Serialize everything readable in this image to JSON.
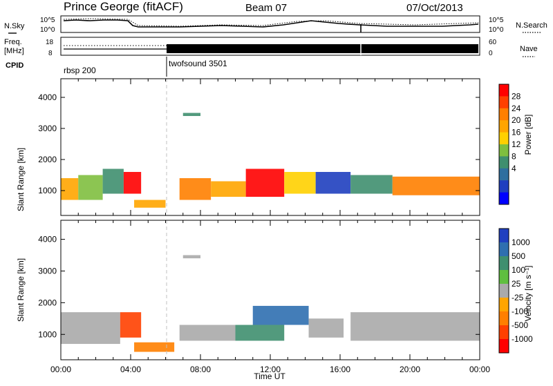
{
  "header": {
    "station": "Prince George (fitACF)",
    "beam": "Beam 07",
    "date": "07/Oct/2013"
  },
  "status_panel": {
    "nsky_label": "N.Sky",
    "nsearch_label": "N.Search",
    "freq_label_1": "Freq.",
    "freq_label_2": "[MHz]",
    "nave_label": "Nave",
    "cpid_label": "CPID",
    "noise_ticks": [
      "10^5",
      "10^0"
    ],
    "freq_ticks": [
      "18",
      "8"
    ],
    "nave_ticks": [
      "60",
      "0"
    ],
    "cpid_segments": [
      {
        "name": "rbsp 200",
        "start_hour": 0,
        "end_hour": 6
      },
      {
        "name": "twofsound 3501",
        "start_hour": 6,
        "end_hour": 24
      }
    ]
  },
  "colorbars": {
    "power": {
      "title": "Power [dB]",
      "ticks": [
        "28",
        "24",
        "20",
        "16",
        "12",
        "8",
        "4"
      ],
      "colors": [
        "#ff0000",
        "#ff4000",
        "#ff7f00",
        "#ffa500",
        "#ffd000",
        "#7fbf3f",
        "#3f8f6f",
        "#2f6f9f",
        "#1f3fbf",
        "#0000ff"
      ]
    },
    "velocity": {
      "title": "Velocity [m s^-1]",
      "ticks": [
        "1000",
        "500",
        "100",
        "25",
        "-25",
        "-100",
        "-500",
        "-1000"
      ],
      "colors": [
        "#2040c0",
        "#2f6fb0",
        "#3f8f6f",
        "#5fbf3f",
        "#aaaaaa",
        "#ffa500",
        "#ff7f00",
        "#ff4000",
        "#ff0000"
      ]
    }
  },
  "chart_data": [
    {
      "type": "heatmap",
      "title": "Power",
      "xlabel": "",
      "ylabel": "Slant Range [km]",
      "xlim": [
        0,
        24
      ],
      "ylim": [
        200,
        4600
      ],
      "y_ticks": [
        "1000",
        "2000",
        "3000",
        "4000"
      ],
      "colorbar_label": "Power [dB]",
      "bands": [
        {
          "start_hour": 0.0,
          "end_hour": 1.0,
          "range_low": 700,
          "range_high": 1400,
          "power_db": 20
        },
        {
          "start_hour": 1.0,
          "end_hour": 2.4,
          "range_low": 700,
          "range_high": 1500,
          "power_db": 14
        },
        {
          "start_hour": 2.4,
          "end_hour": 3.6,
          "range_low": 900,
          "range_high": 1700,
          "power_db": 10
        },
        {
          "start_hour": 3.6,
          "end_hour": 4.6,
          "range_low": 900,
          "range_high": 1600,
          "power_db": 28
        },
        {
          "start_hour": 4.2,
          "end_hour": 6.0,
          "range_low": 450,
          "range_high": 700,
          "power_db": 20
        },
        {
          "start_hour": 6.8,
          "end_hour": 8.6,
          "range_low": 700,
          "range_high": 1400,
          "power_db": 24
        },
        {
          "start_hour": 8.6,
          "end_hour": 10.6,
          "range_low": 800,
          "range_high": 1300,
          "power_db": 20
        },
        {
          "start_hour": 10.6,
          "end_hour": 12.8,
          "range_low": 800,
          "range_high": 1700,
          "power_db": 28
        },
        {
          "start_hour": 12.8,
          "end_hour": 14.6,
          "range_low": 900,
          "range_high": 1600,
          "power_db": 16
        },
        {
          "start_hour": 14.6,
          "end_hour": 16.6,
          "range_low": 900,
          "range_high": 1600,
          "power_db": 6
        },
        {
          "start_hour": 16.6,
          "end_hour": 19.0,
          "range_low": 900,
          "range_high": 1500,
          "power_db": 12
        },
        {
          "start_hour": 19.0,
          "end_hour": 24.0,
          "range_low": 850,
          "range_high": 1450,
          "power_db": 22
        },
        {
          "start_hour": 7.0,
          "end_hour": 8.0,
          "range_low": 3400,
          "range_high": 3500,
          "power_db": 12
        }
      ]
    },
    {
      "type": "heatmap",
      "title": "Velocity",
      "xlabel": "Time UT",
      "ylabel": "Slant Range [km]",
      "xlim": [
        0,
        24
      ],
      "ylim": [
        200,
        4600
      ],
      "x_ticks": [
        "00:00",
        "04:00",
        "08:00",
        "12:00",
        "16:00",
        "20:00",
        "00:00"
      ],
      "y_ticks": [
        "1000",
        "2000",
        "3000",
        "4000"
      ],
      "colorbar_label": "Velocity [m s^-1]",
      "bands": [
        {
          "start_hour": 0.0,
          "end_hour": 3.4,
          "range_low": 700,
          "range_high": 1700,
          "velocity": 0
        },
        {
          "start_hour": 3.4,
          "end_hour": 4.6,
          "range_low": 900,
          "range_high": 1700,
          "velocity": -900
        },
        {
          "start_hour": 4.2,
          "end_hour": 6.5,
          "range_low": 450,
          "range_high": 750,
          "velocity": -500
        },
        {
          "start_hour": 6.8,
          "end_hour": 10.0,
          "range_low": 800,
          "range_high": 1300,
          "velocity": 0
        },
        {
          "start_hour": 10.0,
          "end_hour": 12.8,
          "range_low": 800,
          "range_high": 1300,
          "velocity": 300
        },
        {
          "start_hour": 11.0,
          "end_hour": 14.2,
          "range_low": 1300,
          "range_high": 1900,
          "velocity": 800
        },
        {
          "start_hour": 14.2,
          "end_hour": 16.2,
          "range_low": 900,
          "range_high": 1500,
          "velocity": 0
        },
        {
          "start_hour": 16.6,
          "end_hour": 24.0,
          "range_low": 800,
          "range_high": 1700,
          "velocity": 0
        },
        {
          "start_hour": 7.0,
          "end_hour": 8.0,
          "range_low": 3400,
          "range_high": 3500,
          "velocity": 0
        }
      ]
    }
  ]
}
